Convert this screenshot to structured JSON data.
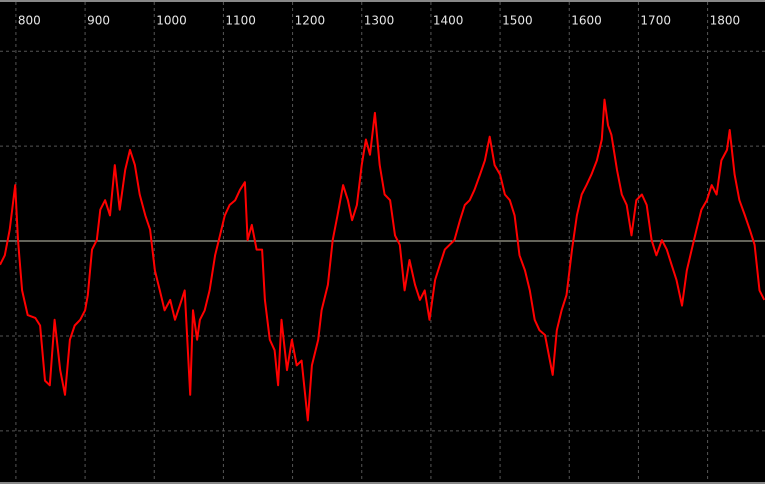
{
  "chart_data": {
    "type": "line",
    "x": [
      777,
      784,
      791,
      799,
      803,
      809,
      817,
      828,
      835,
      842,
      849,
      856,
      864,
      871,
      878,
      885,
      893,
      900,
      904,
      910,
      917,
      922,
      929,
      936,
      943,
      950,
      958,
      965,
      972,
      979,
      987,
      994,
      1001,
      1008,
      1015,
      1023,
      1030,
      1037,
      1044,
      1052,
      1056,
      1062,
      1066,
      1073,
      1080,
      1088,
      1095,
      1102,
      1109,
      1117,
      1124,
      1131,
      1135,
      1141,
      1148,
      1156,
      1160,
      1167,
      1174,
      1179,
      1184,
      1192,
      1199,
      1206,
      1213,
      1222,
      1228,
      1237,
      1242,
      1251,
      1258,
      1265,
      1273,
      1280,
      1286,
      1293,
      1300,
      1306,
      1312,
      1319,
      1326,
      1333,
      1341,
      1348,
      1355,
      1362,
      1369,
      1377,
      1384,
      1391,
      1398,
      1406,
      1413,
      1420,
      1427,
      1434,
      1442,
      1449,
      1456,
      1463,
      1471,
      1478,
      1485,
      1492,
      1500,
      1507,
      1514,
      1521,
      1528,
      1536,
      1543,
      1550,
      1557,
      1565,
      1572,
      1576,
      1582,
      1589,
      1596,
      1604,
      1611,
      1618,
      1625,
      1632,
      1640,
      1647,
      1651,
      1656,
      1661,
      1669,
      1676,
      1683,
      1690,
      1697,
      1705,
      1712,
      1719,
      1726,
      1734,
      1741,
      1748,
      1755,
      1763,
      1770,
      1777,
      1784,
      1791,
      1799,
      1806,
      1813,
      1820,
      1828,
      1832,
      1839,
      1846,
      1854,
      1861,
      1868,
      1875,
      1882
    ],
    "series": [
      {
        "color": "#ff0000",
        "values": [
          -0.25,
          -0.15,
          0.12,
          0.59,
          0.01,
          -0.52,
          -0.78,
          -0.81,
          -0.89,
          -1.47,
          -1.52,
          -0.83,
          -1.36,
          -1.62,
          -1.04,
          -0.89,
          -0.83,
          -0.73,
          -0.57,
          -0.09,
          0.01,
          0.33,
          0.43,
          0.27,
          0.8,
          0.33,
          0.75,
          0.96,
          0.8,
          0.49,
          0.27,
          0.12,
          -0.31,
          -0.52,
          -0.73,
          -0.62,
          -0.83,
          -0.68,
          -0.52,
          -1.62,
          -0.73,
          -1.04,
          -0.83,
          -0.73,
          -0.52,
          -0.15,
          0.06,
          0.27,
          0.38,
          0.43,
          0.54,
          0.62,
          0.01,
          0.17,
          -0.09,
          -0.09,
          -0.62,
          -1.04,
          -1.15,
          -1.52,
          -0.83,
          -1.36,
          -1.04,
          -1.31,
          -1.26,
          -1.89,
          -1.31,
          -1.04,
          -0.73,
          -0.46,
          0.01,
          0.27,
          0.59,
          0.43,
          0.22,
          0.38,
          0.8,
          1.07,
          0.91,
          1.35,
          0.8,
          0.49,
          0.43,
          0.06,
          -0.04,
          -0.52,
          -0.2,
          -0.46,
          -0.62,
          -0.52,
          -0.83,
          -0.41,
          -0.25,
          -0.09,
          -0.04,
          0.01,
          0.22,
          0.38,
          0.43,
          0.54,
          0.7,
          0.85,
          1.1,
          0.8,
          0.7,
          0.49,
          0.43,
          0.27,
          -0.15,
          -0.31,
          -0.52,
          -0.83,
          -0.94,
          -0.99,
          -1.26,
          -1.41,
          -0.94,
          -0.73,
          -0.57,
          -0.09,
          0.27,
          0.49,
          0.59,
          0.7,
          0.85,
          1.07,
          1.49,
          1.22,
          1.12,
          0.75,
          0.49,
          0.38,
          0.06,
          0.43,
          0.49,
          0.38,
          0.01,
          -0.15,
          0.01,
          -0.09,
          -0.25,
          -0.41,
          -0.68,
          -0.31,
          -0.09,
          0.12,
          0.33,
          0.43,
          0.59,
          0.49,
          0.85,
          0.96,
          1.17,
          0.7,
          0.43,
          0.27,
          0.12,
          -0.04,
          -0.52,
          -0.62
        ]
      }
    ],
    "xlim": [
      777,
      1883
    ],
    "xticks": [
      800,
      900,
      1000,
      1100,
      1200,
      1300,
      1400,
      1500,
      1600,
      1700,
      1800
    ],
    "ylim": [
      -2.56,
      2.54
    ],
    "yticks": [
      -2,
      -1,
      0,
      1,
      2
    ],
    "grid": true
  }
}
